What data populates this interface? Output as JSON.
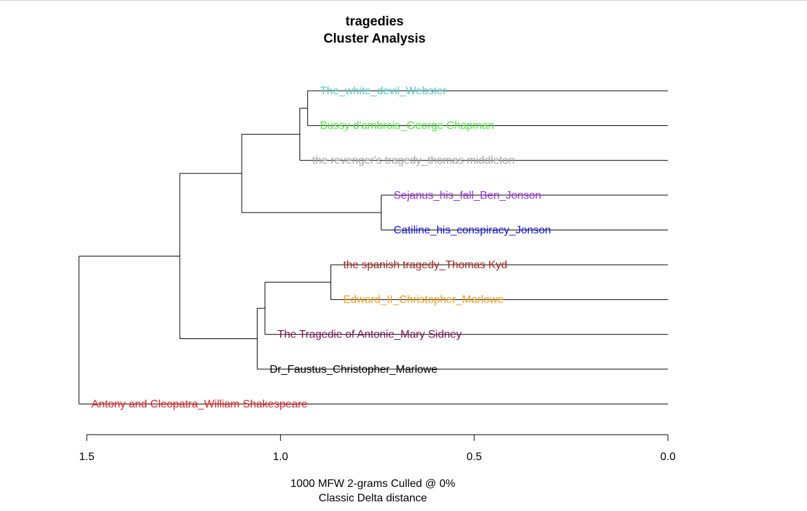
{
  "chart_data": {
    "type": "dendrogram",
    "title": "tragedies",
    "subtitle": "Cluster Analysis",
    "xlabel": "1000 MFW 2-grams Culled @ 0%",
    "xlabel2": "Classic Delta distance",
    "xlim": [
      1.5,
      0.0
    ],
    "ticks": [
      {
        "value": 1.5,
        "label": "1.5"
      },
      {
        "value": 1.0,
        "label": "1.0"
      },
      {
        "value": 0.5,
        "label": "0.5"
      },
      {
        "value": 0.0,
        "label": "0.0"
      }
    ],
    "leaves": [
      {
        "label": "The_white_devil_Webster",
        "color": "#5bc8c8"
      },
      {
        "label": "Bussy d'ambrois_George Chapman",
        "color": "#4ce63c"
      },
      {
        "label": "the revenger's tragedy_thomas middleton",
        "color": "#a3a3a3"
      },
      {
        "label": "Sejanus_his_fall_Ben_Jonson",
        "color": "#9a2ee0"
      },
      {
        "label": "Catiline_his_conspiracy_Jonson",
        "color": "#1414dc"
      },
      {
        "label": "the spanish tragedy_Thomas Kyd",
        "color": "#a0281e"
      },
      {
        "label": "Edward_II_Christopher_Marlowe",
        "color": "#eba020"
      },
      {
        "label": "The Tragedie of Antonie_Mary Sidney",
        "color": "#7a1650"
      },
      {
        "label": "Dr_Faustus_Christopher_Marlowe",
        "color": "#000000"
      },
      {
        "label": "Antony and Cleopatra_William Shakespeare",
        "color": "#e0201e"
      }
    ],
    "merges": [
      {
        "a": "leaf:0",
        "b": "leaf:1",
        "height": 0.93
      },
      {
        "a": "node:0",
        "b": "leaf:2",
        "height": 0.95
      },
      {
        "a": "leaf:3",
        "b": "leaf:4",
        "height": 0.74
      },
      {
        "a": "node:1",
        "b": "node:2",
        "height": 1.1
      },
      {
        "a": "leaf:5",
        "b": "leaf:6",
        "height": 0.87
      },
      {
        "a": "leaf:7",
        "b": "node:4",
        "height": 1.04
      },
      {
        "a": "node:5",
        "b": "leaf:8",
        "height": 1.06
      },
      {
        "a": "node:3",
        "b": "node:6",
        "height": 1.26
      },
      {
        "a": "node:7",
        "b": "leaf:9",
        "height": 1.52
      }
    ]
  }
}
